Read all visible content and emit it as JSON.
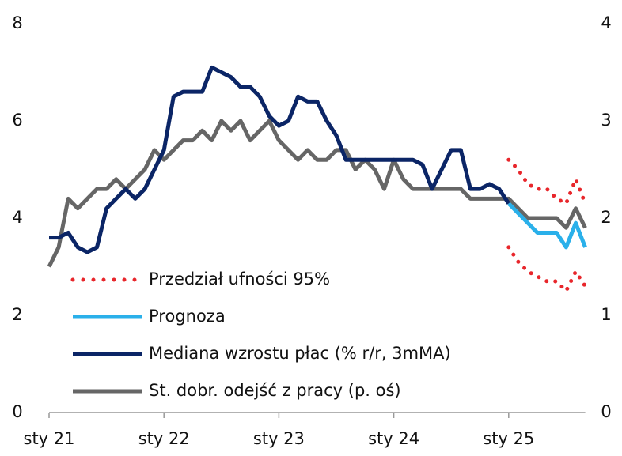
{
  "chart_data": {
    "type": "line",
    "categories": [
      "sty 21",
      null,
      null,
      null,
      null,
      null,
      null,
      null,
      null,
      null,
      null,
      null,
      "sty 22",
      null,
      null,
      null,
      null,
      null,
      null,
      null,
      null,
      null,
      null,
      null,
      "sty 23",
      null,
      null,
      null,
      null,
      null,
      null,
      null,
      null,
      null,
      null,
      null,
      "sty 24",
      null,
      null,
      null,
      null,
      null,
      null,
      null,
      null,
      null,
      null,
      null,
      "sty 25",
      null,
      null,
      null,
      null,
      null,
      null,
      null,
      null
    ],
    "ylim": [
      0,
      8
    ],
    "yticks": [
      0,
      2,
      4,
      6,
      8
    ],
    "y2lim": [
      0,
      4
    ],
    "y2ticks": [
      0,
      1,
      2,
      3,
      4
    ],
    "band": {
      "name": "Przedział ufności 95%",
      "color": "#e8262b",
      "upper": [
        null,
        null,
        null,
        null,
        null,
        null,
        null,
        null,
        null,
        null,
        null,
        null,
        null,
        null,
        null,
        null,
        null,
        null,
        null,
        null,
        null,
        null,
        null,
        null,
        null,
        null,
        null,
        null,
        null,
        null,
        null,
        null,
        null,
        null,
        null,
        null,
        null,
        null,
        null,
        null,
        null,
        null,
        null,
        null,
        null,
        null,
        null,
        null,
        5.2,
        5.0,
        4.7,
        4.6,
        4.6,
        4.4,
        4.3,
        4.8,
        4.3
      ],
      "lower": [
        null,
        null,
        null,
        null,
        null,
        null,
        null,
        null,
        null,
        null,
        null,
        null,
        null,
        null,
        null,
        null,
        null,
        null,
        null,
        null,
        null,
        null,
        null,
        null,
        null,
        null,
        null,
        null,
        null,
        null,
        null,
        null,
        null,
        null,
        null,
        null,
        null,
        null,
        null,
        null,
        null,
        null,
        null,
        null,
        null,
        null,
        null,
        null,
        3.4,
        3.1,
        2.9,
        2.8,
        2.7,
        2.7,
        2.5,
        2.9,
        2.6
      ]
    },
    "series": [
      {
        "name": "Prognoza",
        "color": "#2ab0ea",
        "values": [
          null,
          null,
          null,
          null,
          null,
          null,
          null,
          null,
          null,
          null,
          null,
          null,
          null,
          null,
          null,
          null,
          null,
          null,
          null,
          null,
          null,
          null,
          null,
          null,
          null,
          null,
          null,
          null,
          null,
          null,
          null,
          null,
          null,
          null,
          null,
          null,
          null,
          null,
          null,
          null,
          null,
          null,
          null,
          null,
          null,
          null,
          null,
          null,
          4.3,
          4.1,
          3.9,
          3.7,
          3.7,
          3.7,
          3.4,
          3.9,
          3.4
        ]
      },
      {
        "name": "Mediana wzrostu płac (% r/r, 3mMA)",
        "color": "#0b2566",
        "values": [
          3.6,
          3.6,
          3.7,
          3.4,
          3.3,
          3.4,
          4.2,
          4.4,
          4.6,
          4.4,
          4.6,
          5.0,
          5.4,
          6.5,
          6.6,
          6.6,
          6.6,
          7.1,
          7.0,
          6.9,
          6.7,
          6.7,
          6.5,
          6.1,
          5.9,
          6.0,
          6.5,
          6.4,
          6.4,
          6.0,
          5.7,
          5.2,
          5.2,
          5.2,
          5.2,
          5.2,
          5.2,
          5.2,
          5.2,
          5.1,
          4.6,
          5.0,
          5.4,
          5.4,
          4.6,
          4.6,
          4.7,
          4.6,
          4.3,
          null,
          null,
          null,
          null,
          null,
          null,
          null,
          null
        ]
      },
      {
        "name": "St. dobr. odejść z pracy (p. oś)",
        "color": "#666666",
        "axis": "y2",
        "values": [
          1.5,
          1.7,
          2.2,
          2.1,
          2.2,
          2.3,
          2.3,
          2.4,
          2.3,
          2.4,
          2.5,
          2.7,
          2.6,
          2.7,
          2.8,
          2.8,
          2.9,
          2.8,
          3.0,
          2.9,
          3.0,
          2.8,
          2.9,
          3.0,
          2.8,
          2.7,
          2.6,
          2.7,
          2.6,
          2.6,
          2.7,
          2.7,
          2.5,
          2.6,
          2.5,
          2.3,
          2.6,
          2.4,
          2.3,
          2.3,
          2.3,
          2.3,
          2.3,
          2.3,
          2.2,
          2.2,
          2.2,
          2.2,
          2.2,
          2.1,
          2.0,
          2.0,
          2.0,
          2.0,
          1.9,
          2.1,
          1.9
        ]
      }
    ]
  }
}
